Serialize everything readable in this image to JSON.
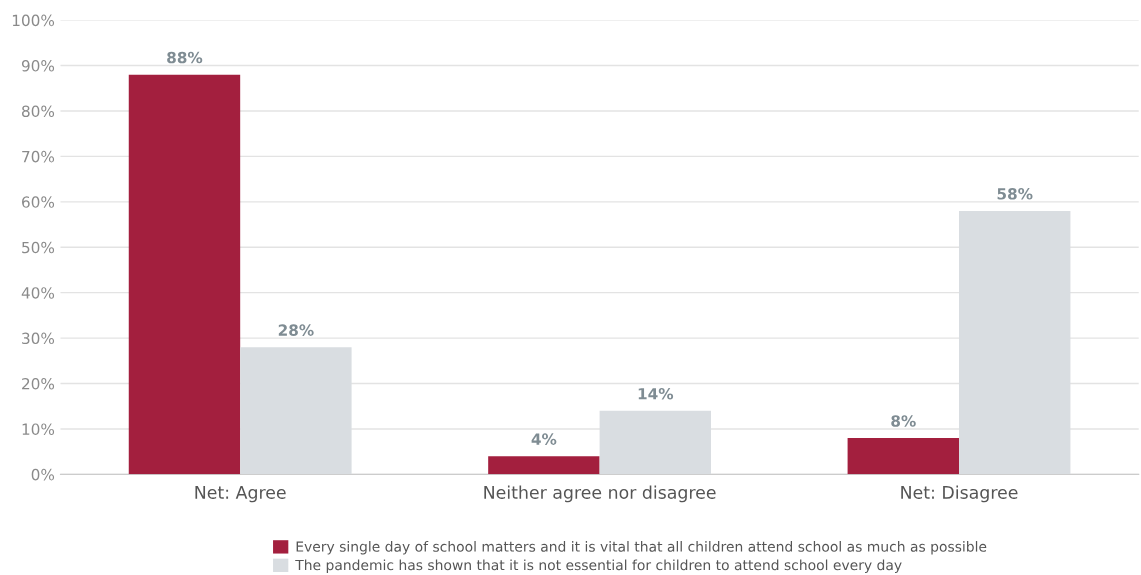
{
  "chart_data": {
    "type": "bar",
    "categories": [
      "Net: Agree",
      "Neither agree nor disagree",
      "Net: Disagree"
    ],
    "series": [
      {
        "name": "Every single day of school matters and it is vital that all children attend school as much as possible",
        "color": "#a31f3e",
        "values": [
          88,
          4,
          8
        ],
        "value_labels": [
          "88%",
          "4%",
          "8%"
        ]
      },
      {
        "name": "The pandemic has shown that it is not essential for children to attend school every day",
        "color": "#d9dde1",
        "values": [
          28,
          14,
          58
        ],
        "value_labels": [
          "28%",
          "14%",
          "58%"
        ]
      }
    ],
    "ylim": [
      0,
      100
    ],
    "yticks": [
      {
        "value": 0,
        "label": "0%"
      },
      {
        "value": 10,
        "label": "10%"
      },
      {
        "value": 20,
        "label": "20%"
      },
      {
        "value": 30,
        "label": "30%"
      },
      {
        "value": 40,
        "label": "40%"
      },
      {
        "value": 50,
        "label": "50%"
      },
      {
        "value": 60,
        "label": "60%"
      },
      {
        "value": 70,
        "label": "70%"
      },
      {
        "value": 80,
        "label": "80%"
      },
      {
        "value": 90,
        "label": "90%"
      },
      {
        "value": 100,
        "label": "100%"
      }
    ],
    "grid": "y",
    "legend": "bottom"
  }
}
